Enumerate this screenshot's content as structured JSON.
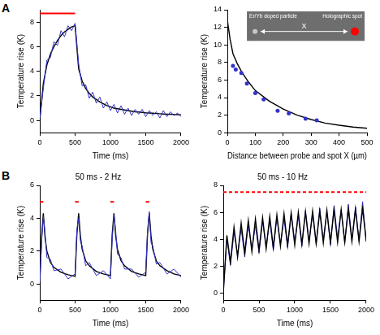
{
  "chart_data": [
    {
      "type": "line",
      "panel_label": "A",
      "x_label": "Time (ms)",
      "y_label": "Temperature rise (K)",
      "xlim": [
        0,
        2000
      ],
      "xticks": [
        0,
        500,
        1000,
        1500,
        2000
      ],
      "ylim": [
        -1,
        9
      ],
      "yticks": [
        0,
        2,
        4,
        6,
        8
      ],
      "grid": false,
      "stimulus": {
        "color": "#ff0000",
        "line_style": "solid",
        "y": 8.7,
        "segments": [
          [
            0,
            500
          ]
        ]
      },
      "series": [
        {
          "type": "line",
          "color": "#3333cc",
          "x": [
            0,
            50,
            100,
            150,
            200,
            250,
            300,
            350,
            400,
            450,
            500,
            550,
            600,
            650,
            700,
            750,
            800,
            850,
            900,
            950,
            1000,
            1050,
            1100,
            1150,
            1200,
            1250,
            1300,
            1350,
            1400,
            1450,
            1500,
            1550,
            1600,
            1650,
            1700,
            1750,
            1800,
            1850,
            1900,
            1950,
            2000
          ],
          "values": [
            0.2,
            2.6,
            4.9,
            5.1,
            6.4,
            6.1,
            7.3,
            6.8,
            7.7,
            7.3,
            7.9,
            4.6,
            2.8,
            2.9,
            1.8,
            2.3,
            1.4,
            1.9,
            1.0,
            1.5,
            0.8,
            1.3,
            0.6,
            1.2,
            0.5,
            1.0,
            0.4,
            0.9,
            0.5,
            0.9,
            0.3,
            0.8,
            0.4,
            0.7,
            0.2,
            0.8,
            0.3,
            0.7,
            0.4,
            0.6,
            0.3
          ]
        },
        {
          "type": "line",
          "color": "#000000",
          "x": [
            0,
            50,
            100,
            150,
            200,
            250,
            300,
            350,
            400,
            450,
            500,
            550,
            600,
            650,
            700,
            750,
            800,
            850,
            900,
            950,
            1000,
            1050,
            1100,
            1150,
            1200,
            1250,
            1300,
            1350,
            1400,
            1450,
            1500,
            1550,
            1600,
            1650,
            1700,
            1750,
            1800,
            1850,
            1900,
            1950,
            2000
          ],
          "values": [
            0,
            3.0,
            4.5,
            5.4,
            6.0,
            6.5,
            6.9,
            7.2,
            7.4,
            7.6,
            7.7,
            4.2,
            3.2,
            2.6,
            2.2,
            1.9,
            1.7,
            1.5,
            1.35,
            1.2,
            1.1,
            1.0,
            0.95,
            0.9,
            0.85,
            0.8,
            0.75,
            0.7,
            0.68,
            0.65,
            0.62,
            0.6,
            0.58,
            0.56,
            0.54,
            0.52,
            0.5,
            0.5,
            0.48,
            0.47,
            0.46
          ]
        }
      ]
    },
    {
      "type": "scatter",
      "x_label": "Distance between probe and spot X (µm)",
      "y_label": "Temperature rise (K)",
      "xlim": [
        0,
        500
      ],
      "xticks": [
        0,
        100,
        200,
        300,
        400,
        500
      ],
      "ylim": [
        0,
        14
      ],
      "yticks": [
        0,
        2,
        4,
        6,
        8,
        10,
        12,
        14
      ],
      "grid": false,
      "inset": {
        "labels": [
          "Er/Yb doped particle",
          "X",
          "Holographic spot"
        ]
      },
      "series": [
        {
          "type": "scatter",
          "marker": "circle",
          "color": "#3333cc",
          "x": [
            20,
            30,
            50,
            70,
            100,
            130,
            180,
            220,
            280,
            320
          ],
          "values": [
            7.6,
            7.2,
            6.8,
            5.6,
            4.5,
            3.8,
            2.5,
            2.2,
            1.6,
            1.4
          ]
        },
        {
          "type": "line",
          "color": "#000000",
          "x": [
            0,
            10,
            20,
            35,
            50,
            75,
            100,
            150,
            200,
            250,
            300,
            350,
            400,
            450,
            500
          ],
          "values": [
            12.8,
            10.6,
            9.0,
            7.9,
            7.0,
            5.8,
            4.8,
            3.6,
            2.7,
            2.0,
            1.5,
            1.1,
            0.85,
            0.65,
            0.5
          ]
        }
      ]
    },
    {
      "type": "line",
      "panel_label": "B",
      "title": "50 ms - 2 Hz",
      "x_label": "Time (ms)",
      "y_label": "Temperature rise (K)",
      "xlim": [
        0,
        2000
      ],
      "xticks": [
        0,
        500,
        1000,
        1500,
        2000
      ],
      "ylim": [
        -1,
        6
      ],
      "yticks": [
        0,
        2,
        4,
        6
      ],
      "grid": false,
      "stimulus": {
        "color": "#ff0000",
        "line_style": "solid",
        "y": 5,
        "segments": [
          [
            0,
            50
          ],
          [
            500,
            550
          ],
          [
            1000,
            1050
          ],
          [
            1500,
            1550
          ]
        ]
      },
      "series": [
        {
          "type": "line",
          "color": "#3333cc",
          "x": [
            0,
            25,
            50,
            75,
            100,
            150,
            200,
            300,
            400,
            500,
            525,
            550,
            575,
            600,
            650,
            700,
            800,
            900,
            1000,
            1025,
            1050,
            1075,
            1100,
            1150,
            1200,
            1300,
            1400,
            1500,
            1525,
            1550,
            1575,
            1600,
            1650,
            1700,
            1800,
            1900,
            2000
          ],
          "values": [
            0.1,
            2.5,
            4.1,
            3.1,
            1.6,
            1.5,
            0.8,
            0.9,
            0.3,
            0.6,
            3.3,
            4.0,
            2.6,
            2.3,
            1.1,
            1.3,
            0.5,
            0.8,
            0.3,
            2.7,
            4.2,
            3.2,
            1.8,
            1.6,
            0.9,
            0.9,
            0.4,
            0.7,
            3.2,
            4.4,
            2.5,
            2.3,
            1.2,
            1.3,
            0.6,
            0.9,
            0.4
          ]
        },
        {
          "type": "line",
          "color": "#000000",
          "x": [
            0,
            25,
            50,
            75,
            100,
            150,
            200,
            300,
            400,
            500,
            525,
            550,
            575,
            600,
            650,
            700,
            800,
            900,
            1000,
            1025,
            1050,
            1075,
            1100,
            1150,
            1200,
            1300,
            1400,
            1500,
            1525,
            1550,
            1575,
            1600,
            1650,
            1700,
            1800,
            1900,
            2000
          ],
          "values": [
            0,
            2.8,
            4.3,
            2.8,
            2.0,
            1.3,
            1.0,
            0.7,
            0.55,
            0.45,
            3.0,
            4.3,
            2.9,
            2.1,
            1.4,
            1.1,
            0.75,
            0.6,
            0.5,
            3.0,
            4.3,
            2.9,
            2.1,
            1.4,
            1.1,
            0.75,
            0.6,
            0.5,
            3.0,
            4.3,
            2.9,
            2.1,
            1.4,
            1.1,
            0.8,
            0.6,
            0.5
          ]
        }
      ]
    },
    {
      "type": "line",
      "title": "50 ms - 10 Hz",
      "x_label": "Time (ms)",
      "y_label": "Temperature rise (K)",
      "xlim": [
        0,
        2000
      ],
      "xticks": [
        0,
        500,
        1000,
        1500,
        2000
      ],
      "ylim": [
        -0.5,
        8
      ],
      "yticks": [
        0,
        2,
        4,
        6,
        8
      ],
      "grid": false,
      "stimulus": {
        "color": "#ff0000",
        "line_style": "dashed",
        "y": 7.5,
        "segments": [
          [
            0,
            2000
          ]
        ]
      },
      "series": [
        {
          "type": "line",
          "color": "#000000",
          "x": [
            0,
            50,
            100,
            150,
            200,
            250,
            300,
            350,
            400,
            450,
            500,
            550,
            600,
            650,
            700,
            750,
            800,
            850,
            900,
            950,
            1000,
            1050,
            1100,
            1150,
            1200,
            1250,
            1300,
            1350,
            1400,
            1450,
            1500,
            1550,
            1600,
            1650,
            1700,
            1750,
            1800,
            1850,
            1900,
            1950,
            2000
          ],
          "values": [
            0,
            4.3,
            2.3,
            4.9,
            2.7,
            5.2,
            3.0,
            5.4,
            3.1,
            5.5,
            3.2,
            5.6,
            3.3,
            5.7,
            3.4,
            5.8,
            3.5,
            5.9,
            3.55,
            5.95,
            3.6,
            6.0,
            3.65,
            6.05,
            3.7,
            6.1,
            3.7,
            6.1,
            3.75,
            6.15,
            3.75,
            6.2,
            3.8,
            6.2,
            3.8,
            6.25,
            3.85,
            6.25,
            3.85,
            6.3,
            3.9
          ]
        },
        {
          "type": "line",
          "color": "#3333cc",
          "x": [
            0,
            50,
            100,
            150,
            200,
            250,
            300,
            350,
            400,
            450,
            500,
            550,
            600,
            650,
            700,
            750,
            800,
            850,
            900,
            950,
            1000,
            1050,
            1100,
            1150,
            1200,
            1250,
            1300,
            1350,
            1400,
            1450,
            1500,
            1550,
            1600,
            1650,
            1700,
            1750,
            1800,
            1850,
            1900,
            1950,
            2000
          ],
          "values": [
            0.1,
            4.0,
            2.1,
            4.5,
            2.9,
            4.8,
            2.7,
            5.1,
            3.3,
            5.0,
            3.0,
            5.3,
            3.5,
            5.4,
            3.2,
            5.6,
            3.7,
            5.5,
            3.4,
            5.9,
            3.8,
            5.7,
            3.5,
            6.1,
            3.9,
            5.9,
            3.6,
            6.3,
            4.0,
            6.0,
            3.6,
            6.5,
            4.1,
            6.2,
            3.7,
            6.6,
            4.0,
            6.4,
            3.9,
            6.8,
            3.8
          ]
        }
      ]
    }
  ]
}
